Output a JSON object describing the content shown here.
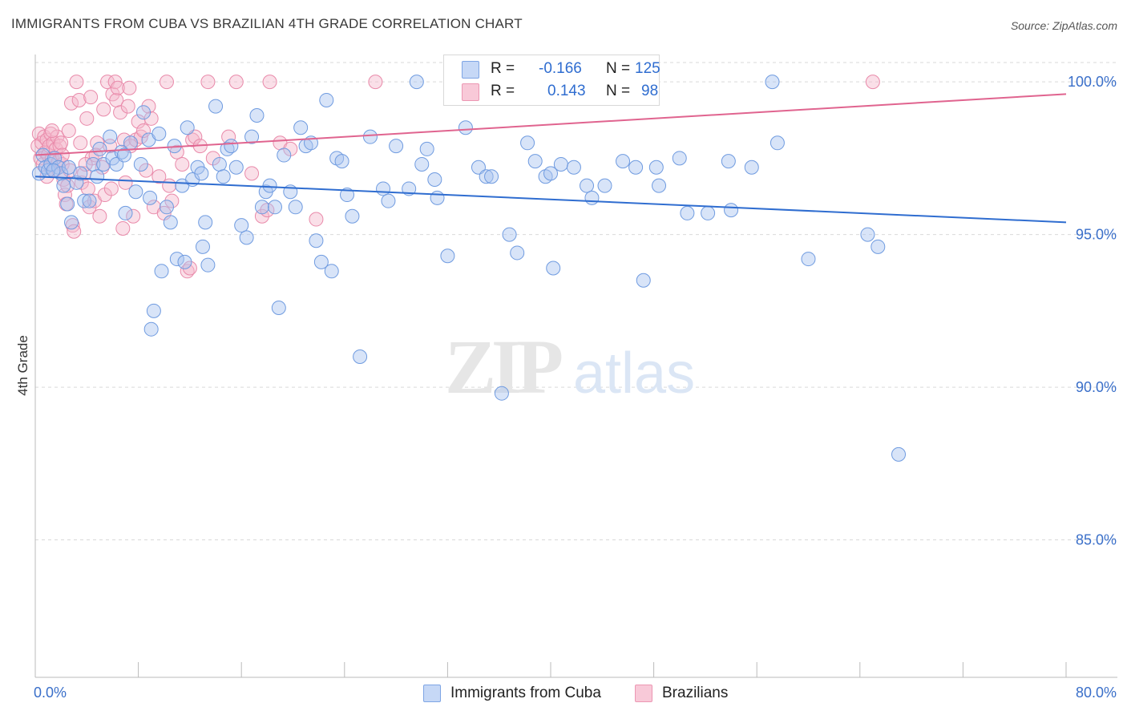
{
  "header": {
    "title": "IMMIGRANTS FROM CUBA VS BRAZILIAN 4TH GRADE CORRELATION CHART",
    "source": "Source: ZipAtlas.com"
  },
  "legend": {
    "r_label": "R =",
    "n_label": "N =",
    "series": [
      {
        "name": "Immigrants from Cuba",
        "r": "-0.166",
        "n": "125",
        "fill": "#a8c4f0",
        "stroke": "#6f9be0"
      },
      {
        "name": "Brazilians",
        "r": "0.143",
        "n": "98",
        "fill": "#f5b8cc",
        "stroke": "#e98aaa"
      }
    ]
  },
  "watermark": {
    "zip": "ZIP",
    "atlas": "atlas"
  },
  "colors": {
    "blue_line": "#2f6dd0",
    "pink_line": "#e0648f",
    "axis_text": "#3a6fc9",
    "grid": "#d9d9d9"
  },
  "chart_data": {
    "type": "scatter",
    "title": "IMMIGRANTS FROM CUBA VS BRAZILIAN 4TH GRADE CORRELATION CHART",
    "xlabel": "",
    "ylabel": "4th Grade",
    "xlim": [
      0,
      80
    ],
    "ylim": [
      80.5,
      101.0
    ],
    "x_tick_labels": [
      "0.0%",
      "80.0%"
    ],
    "y_ticks": [
      85,
      90,
      95,
      100
    ],
    "y_tick_labels": [
      "85.0%",
      "90.0%",
      "95.0%",
      "100.0%"
    ],
    "grid": "horizontal dashed",
    "legend_placement": "bottom-center",
    "series": [
      {
        "name": "Immigrants from Cuba",
        "r": -0.166,
        "n": 125,
        "trend": {
          "x": [
            0,
            80
          ],
          "y": [
            96.9,
            95.4
          ]
        },
        "points": [
          [
            0.3,
            97.0
          ],
          [
            0.6,
            97.6
          ],
          [
            0.8,
            97.2
          ],
          [
            1.0,
            97.1
          ],
          [
            1.2,
            97.3
          ],
          [
            1.5,
            97.5
          ],
          [
            1.8,
            97.2
          ],
          [
            2.0,
            97.0
          ],
          [
            2.2,
            96.6
          ],
          [
            2.5,
            96.0
          ],
          [
            2.8,
            95.4
          ],
          [
            3.2,
            96.7
          ],
          [
            3.5,
            97.0
          ],
          [
            3.8,
            96.1
          ],
          [
            4.2,
            96.1
          ],
          [
            4.5,
            97.3
          ],
          [
            5.0,
            97.8
          ],
          [
            5.3,
            97.3
          ],
          [
            5.8,
            98.2
          ],
          [
            6.0,
            97.5
          ],
          [
            6.3,
            97.3
          ],
          [
            6.7,
            97.7
          ],
          [
            7.0,
            95.7
          ],
          [
            7.4,
            98.0
          ],
          [
            7.8,
            96.4
          ],
          [
            8.2,
            97.3
          ],
          [
            8.4,
            99.0
          ],
          [
            8.8,
            98.1
          ],
          [
            9.2,
            92.5
          ],
          [
            9.0,
            91.9
          ],
          [
            9.6,
            98.3
          ],
          [
            9.8,
            93.8
          ],
          [
            10.2,
            95.9
          ],
          [
            10.5,
            95.4
          ],
          [
            10.8,
            97.9
          ],
          [
            11.0,
            94.2
          ],
          [
            11.4,
            96.6
          ],
          [
            11.6,
            94.1
          ],
          [
            11.8,
            98.5
          ],
          [
            12.2,
            96.8
          ],
          [
            12.6,
            97.2
          ],
          [
            13.0,
            94.6
          ],
          [
            13.2,
            95.4
          ],
          [
            13.4,
            94.0
          ],
          [
            14.0,
            99.2
          ],
          [
            14.3,
            97.3
          ],
          [
            14.6,
            96.9
          ],
          [
            14.9,
            97.8
          ],
          [
            15.2,
            97.9
          ],
          [
            15.6,
            97.2
          ],
          [
            16.0,
            95.3
          ],
          [
            16.4,
            94.9
          ],
          [
            16.8,
            98.2
          ],
          [
            17.2,
            98.9
          ],
          [
            17.6,
            95.9
          ],
          [
            17.9,
            96.4
          ],
          [
            18.2,
            96.6
          ],
          [
            18.6,
            95.9
          ],
          [
            18.9,
            92.6
          ],
          [
            19.3,
            97.6
          ],
          [
            19.8,
            96.4
          ],
          [
            20.2,
            95.9
          ],
          [
            20.6,
            98.5
          ],
          [
            21.0,
            97.9
          ],
          [
            21.4,
            98.0
          ],
          [
            21.8,
            94.8
          ],
          [
            22.2,
            94.1
          ],
          [
            22.6,
            99.4
          ],
          [
            23.0,
            93.8
          ],
          [
            23.4,
            97.5
          ],
          [
            23.8,
            97.4
          ],
          [
            24.2,
            96.3
          ],
          [
            24.6,
            95.6
          ],
          [
            25.2,
            91.0
          ],
          [
            26.0,
            98.2
          ],
          [
            27.0,
            96.5
          ],
          [
            27.4,
            96.1
          ],
          [
            28.0,
            97.9
          ],
          [
            29.0,
            96.5
          ],
          [
            29.6,
            100.0
          ],
          [
            30.0,
            97.3
          ],
          [
            30.4,
            97.8
          ],
          [
            31.0,
            96.8
          ],
          [
            31.2,
            96.2
          ],
          [
            32.0,
            94.3
          ],
          [
            33.4,
            98.5
          ],
          [
            34.4,
            97.2
          ],
          [
            35.0,
            96.9
          ],
          [
            35.4,
            96.9
          ],
          [
            36.2,
            89.8
          ],
          [
            36.8,
            95.0
          ],
          [
            37.4,
            94.4
          ],
          [
            38.2,
            98.0
          ],
          [
            38.8,
            97.4
          ],
          [
            39.6,
            96.9
          ],
          [
            40.2,
            93.9
          ],
          [
            40.0,
            97.0
          ],
          [
            40.8,
            97.3
          ],
          [
            41.8,
            97.2
          ],
          [
            42.8,
            96.6
          ],
          [
            43.2,
            96.2
          ],
          [
            44.2,
            96.6
          ],
          [
            45.6,
            97.4
          ],
          [
            46.6,
            97.2
          ],
          [
            47.2,
            93.5
          ],
          [
            48.2,
            97.2
          ],
          [
            48.4,
            96.6
          ],
          [
            50.0,
            97.5
          ],
          [
            50.6,
            95.7
          ],
          [
            52.2,
            95.7
          ],
          [
            53.8,
            97.4
          ],
          [
            54.0,
            95.8
          ],
          [
            55.6,
            97.2
          ],
          [
            57.2,
            100.0
          ],
          [
            57.6,
            98.0
          ],
          [
            60.0,
            94.2
          ],
          [
            64.6,
            95.0
          ],
          [
            65.4,
            94.6
          ],
          [
            67.0,
            87.8
          ],
          [
            1.4,
            97.1
          ],
          [
            2.6,
            97.2
          ],
          [
            4.8,
            96.9
          ],
          [
            6.9,
            97.6
          ],
          [
            8.9,
            96.2
          ],
          [
            12.9,
            97.0
          ]
        ]
      },
      {
        "name": "Brazilians",
        "r": 0.143,
        "n": 98,
        "trend": {
          "x": [
            0,
            80
          ],
          "y": [
            97.6,
            99.6
          ]
        },
        "points": [
          [
            0.2,
            97.9
          ],
          [
            0.3,
            98.3
          ],
          [
            0.4,
            97.5
          ],
          [
            0.5,
            98.0
          ],
          [
            0.6,
            97.3
          ],
          [
            0.7,
            98.2
          ],
          [
            0.8,
            97.7
          ],
          [
            0.9,
            98.1
          ],
          [
            1.0,
            97.6
          ],
          [
            1.1,
            97.9
          ],
          [
            1.2,
            98.3
          ],
          [
            1.3,
            97.5
          ],
          [
            1.4,
            98.0
          ],
          [
            1.5,
            97.1
          ],
          [
            1.6,
            97.8
          ],
          [
            1.7,
            98.2
          ],
          [
            1.8,
            97.4
          ],
          [
            1.9,
            97.9
          ],
          [
            2.0,
            98.0
          ],
          [
            2.1,
            97.3
          ],
          [
            2.2,
            96.8
          ],
          [
            2.3,
            96.3
          ],
          [
            2.4,
            96.0
          ],
          [
            2.5,
            96.6
          ],
          [
            2.6,
            98.4
          ],
          [
            2.7,
            97.1
          ],
          [
            2.8,
            99.3
          ],
          [
            2.9,
            95.3
          ],
          [
            3.0,
            95.1
          ],
          [
            3.2,
            100.0
          ],
          [
            3.4,
            99.4
          ],
          [
            3.5,
            98.0
          ],
          [
            3.6,
            96.7
          ],
          [
            3.8,
            97.0
          ],
          [
            4.0,
            98.8
          ],
          [
            4.1,
            96.5
          ],
          [
            4.2,
            95.9
          ],
          [
            4.3,
            99.5
          ],
          [
            4.4,
            97.5
          ],
          [
            4.6,
            96.1
          ],
          [
            4.8,
            98.0
          ],
          [
            5.0,
            95.6
          ],
          [
            5.2,
            97.2
          ],
          [
            5.3,
            99.1
          ],
          [
            5.4,
            96.3
          ],
          [
            5.6,
            100.0
          ],
          [
            5.8,
            97.9
          ],
          [
            5.9,
            96.5
          ],
          [
            6.0,
            99.6
          ],
          [
            6.2,
            100.0
          ],
          [
            6.3,
            99.4
          ],
          [
            6.4,
            99.8
          ],
          [
            6.6,
            99.0
          ],
          [
            6.8,
            95.2
          ],
          [
            6.9,
            98.1
          ],
          [
            7.0,
            96.7
          ],
          [
            7.2,
            99.2
          ],
          [
            7.3,
            99.8
          ],
          [
            7.4,
            97.9
          ],
          [
            7.6,
            95.6
          ],
          [
            7.8,
            98.1
          ],
          [
            8.0,
            98.7
          ],
          [
            8.2,
            98.2
          ],
          [
            8.4,
            98.4
          ],
          [
            8.6,
            97.1
          ],
          [
            8.8,
            99.2
          ],
          [
            9.0,
            98.8
          ],
          [
            9.2,
            95.9
          ],
          [
            9.6,
            96.9
          ],
          [
            10.0,
            95.7
          ],
          [
            10.2,
            100.0
          ],
          [
            10.4,
            96.6
          ],
          [
            10.6,
            96.1
          ],
          [
            11.0,
            97.7
          ],
          [
            11.4,
            97.3
          ],
          [
            11.8,
            93.8
          ],
          [
            12.0,
            93.9
          ],
          [
            12.2,
            98.1
          ],
          [
            12.4,
            98.2
          ],
          [
            12.8,
            97.9
          ],
          [
            13.4,
            100.0
          ],
          [
            13.8,
            97.5
          ],
          [
            15.0,
            98.2
          ],
          [
            15.6,
            100.0
          ],
          [
            16.8,
            97.0
          ],
          [
            17.6,
            95.6
          ],
          [
            18.0,
            95.8
          ],
          [
            18.2,
            100.0
          ],
          [
            19.0,
            98.0
          ],
          [
            19.8,
            97.8
          ],
          [
            21.8,
            95.5
          ],
          [
            26.4,
            100.0
          ],
          [
            65.0,
            100.0
          ],
          [
            0.9,
            96.9
          ],
          [
            1.3,
            98.4
          ],
          [
            2.1,
            97.6
          ],
          [
            3.9,
            97.3
          ],
          [
            4.7,
            97.6
          ]
        ]
      }
    ]
  }
}
